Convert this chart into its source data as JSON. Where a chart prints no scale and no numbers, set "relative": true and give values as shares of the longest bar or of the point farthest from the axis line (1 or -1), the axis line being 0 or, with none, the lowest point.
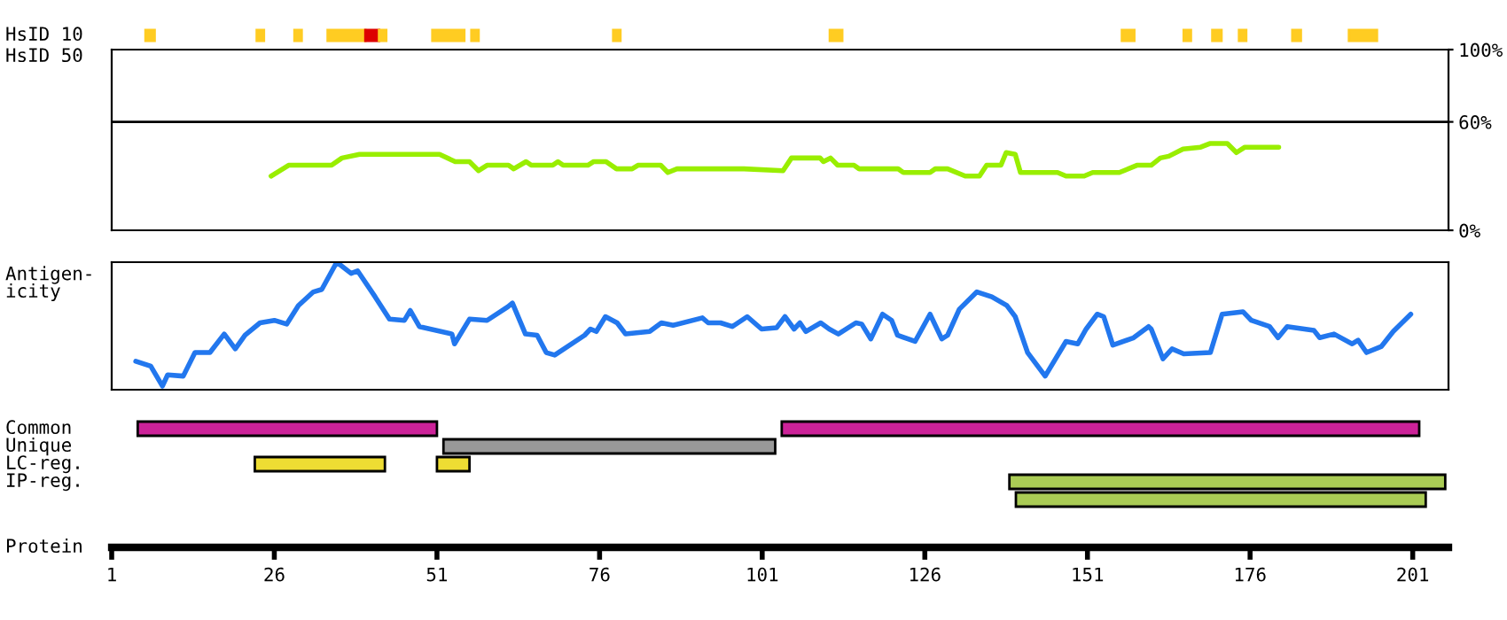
{
  "chart_data": [
    {
      "type": "bar",
      "orientation": "horizontal",
      "categories": [
        "HsID 10",
        "HsID 50"
      ],
      "xlim": [
        1,
        206.5
      ],
      "tick_labels": "y",
      "series": [
        {
          "color": "#ffcc22",
          "base": [
            6.2,
            null
          ],
          "values": [
            1.4,
            null
          ]
        },
        {
          "color": "#ffcc22",
          "base": [
            23.3,
            null
          ],
          "values": [
            1.1,
            null
          ]
        },
        {
          "color": "#ffcc22",
          "base": [
            29.1,
            null
          ],
          "values": [
            1.1,
            null
          ]
        },
        {
          "color": "#ffcc22",
          "base": [
            34.2,
            null
          ],
          "values": [
            5.8,
            null
          ]
        },
        {
          "color": "#dd0000",
          "base": [
            40.0,
            null
          ],
          "values": [
            2.1,
            null
          ]
        },
        {
          "color": "#ffcc22",
          "base": [
            42.1,
            null
          ],
          "values": [
            1.1,
            null
          ]
        },
        {
          "color": "#ffcc22",
          "base": [
            50.3,
            null
          ],
          "values": [
            4.9,
            null
          ]
        },
        {
          "color": "#ffcc22",
          "base": [
            56.3,
            null
          ],
          "values": [
            1.1,
            null
          ]
        },
        {
          "color": "#ffcc22",
          "base": [
            78.1,
            null
          ],
          "values": [
            1.1,
            null
          ]
        },
        {
          "color": "#ffcc22",
          "base": [
            111.4,
            null
          ],
          "values": [
            1.9,
            null
          ]
        },
        {
          "color": "#ffcc22",
          "base": [
            156.3,
            null
          ],
          "values": [
            1.9,
            null
          ]
        },
        {
          "color": "#ffcc22",
          "base": [
            165.8,
            null
          ],
          "values": [
            1.1,
            null
          ]
        },
        {
          "color": "#ffcc22",
          "base": [
            170.2,
            null
          ],
          "values": [
            1.4,
            null
          ]
        },
        {
          "color": "#ffcc22",
          "base": [
            174.3,
            null
          ],
          "values": [
            1.1,
            null
          ]
        },
        {
          "color": "#ffcc22",
          "base": [
            182.5,
            null
          ],
          "values": [
            1.3,
            null
          ]
        },
        {
          "color": "#ffcc22",
          "base": [
            191.2,
            null
          ],
          "values": [
            4.3,
            null
          ]
        }
      ]
    },
    {
      "type": "line",
      "xlim": [
        1,
        206.5
      ],
      "ylim": [
        0,
        100
      ],
      "yticks": [
        {
          "value": 0,
          "label": "0%"
        },
        {
          "value": 60,
          "label": "60%"
        },
        {
          "value": 100,
          "label": "100%"
        }
      ],
      "tick_labels": "y",
      "ref_lines": [
        {
          "axis": "y",
          "value": 60,
          "color": "#000000"
        }
      ],
      "series": [
        {
          "color": "#99ee00",
          "x": [
            25.5,
            28.2,
            34.8,
            36.4,
            39.1,
            51.4,
            53.8,
            56.0,
            57.4,
            58.7,
            62.0,
            62.8,
            64.7,
            65.5,
            68.8,
            69.6,
            70.4,
            74.2,
            75.1,
            77.0,
            78.6,
            81.0,
            81.9,
            85.4,
            86.5,
            87.9,
            98.2,
            104.2,
            105.5,
            109.9,
            110.4,
            111.5,
            112.6,
            115.1,
            115.9,
            121.9,
            122.7,
            126.8,
            127.6,
            129.5,
            132.2,
            134.4,
            135.5,
            137.7,
            138.5,
            139.9,
            140.7,
            146.4,
            147.7,
            150.5,
            151.8,
            155.9,
            158.6,
            160.8,
            162.2,
            163.5,
            165.7,
            168.4,
            169.8,
            172.5,
            173.9,
            175.2,
            180.4
          ],
          "values": [
            30,
            36,
            36,
            40,
            42,
            42,
            38,
            38,
            33,
            36,
            36,
            34,
            38,
            36,
            36,
            38,
            36,
            36,
            38,
            38,
            34,
            34,
            36,
            36,
            32,
            34,
            34,
            33,
            40,
            40,
            38,
            40,
            36,
            36,
            34,
            34,
            32,
            32,
            34,
            34,
            30,
            30,
            36,
            36,
            43,
            42,
            32,
            32,
            30,
            30,
            32,
            32,
            36,
            36,
            40,
            41,
            45,
            46,
            48,
            48,
            43,
            46,
            46
          ]
        }
      ]
    },
    {
      "type": "line",
      "xlim": [
        1,
        206.5
      ],
      "relative": true,
      "tick_labels": false,
      "ylabel": "Antigen-\nicity",
      "series": [
        {
          "color": "#2277ee",
          "x": [
            4.7,
            7.0,
            8.8,
            9.6,
            12.0,
            13.8,
            16.1,
            18.3,
            20.0,
            21.5,
            23.8,
            26.0,
            27.9,
            29.7,
            32.0,
            33.3,
            35.6,
            37.8,
            38.8,
            41.5,
            43.7,
            46.0,
            46.9,
            48.3,
            53.3,
            53.7,
            56.0,
            58.7,
            61.9,
            62.6,
            64.6,
            66.4,
            67.8,
            69.1,
            73.7,
            74.6,
            75.5,
            76.9,
            78.7,
            80.0,
            83.7,
            85.5,
            87.3,
            91.8,
            92.7,
            94.6,
            96.4,
            98.7,
            100.9,
            103.2,
            104.5,
            105.9,
            106.8,
            107.7,
            110.0,
            111.3,
            112.7,
            115.4,
            116.3,
            117.7,
            119.5,
            120.9,
            121.8,
            124.5,
            126.8,
            128.6,
            129.5,
            131.3,
            134.0,
            136.3,
            138.6,
            139.9,
            141.8,
            144.5,
            147.7,
            149.5,
            150.8,
            152.5,
            153.5,
            154.9,
            158.1,
            160.4,
            160.8,
            162.6,
            164.0,
            165.8,
            169.9,
            171.7,
            174.9,
            176.2,
            179.0,
            180.3,
            181.7,
            185.8,
            186.7,
            188.9,
            191.7,
            192.6,
            193.9,
            196.2,
            198.0,
            200.7
          ],
          "values": [
            0.2,
            0.16,
            0,
            0.09,
            0.08,
            0.27,
            0.27,
            0.42,
            0.3,
            0.41,
            0.51,
            0.53,
            0.5,
            0.65,
            0.76,
            0.78,
            1,
            0.91,
            0.93,
            0.72,
            0.54,
            0.53,
            0.61,
            0.48,
            0.42,
            0.34,
            0.54,
            0.53,
            0.64,
            0.67,
            0.42,
            0.41,
            0.27,
            0.25,
            0.41,
            0.46,
            0.44,
            0.56,
            0.51,
            0.42,
            0.44,
            0.51,
            0.49,
            0.55,
            0.51,
            0.51,
            0.48,
            0.56,
            0.46,
            0.47,
            0.56,
            0.46,
            0.51,
            0.44,
            0.51,
            0.46,
            0.42,
            0.51,
            0.5,
            0.38,
            0.58,
            0.53,
            0.41,
            0.36,
            0.58,
            0.38,
            0.41,
            0.62,
            0.76,
            0.72,
            0.65,
            0.56,
            0.27,
            0.08,
            0.36,
            0.34,
            0.46,
            0.58,
            0.56,
            0.33,
            0.39,
            0.48,
            0.46,
            0.22,
            0.3,
            0.26,
            0.27,
            0.58,
            0.6,
            0.53,
            0.48,
            0.39,
            0.48,
            0.45,
            0.39,
            0.42,
            0.34,
            0.37,
            0.27,
            0.32,
            0.44,
            0.58
          ]
        }
      ]
    },
    {
      "type": "bar",
      "orientation": "horizontal",
      "categories": [
        "Common",
        "Unique",
        "LC-reg.",
        "IP-reg.",
        null
      ],
      "xlim": [
        1,
        206.5
      ],
      "xlabel": "Protein",
      "xticks": [
        1,
        26,
        51,
        76,
        101,
        126,
        151,
        176,
        201
      ],
      "series": [
        {
          "colors": [
            "#cc2299",
            "#999999",
            "#eedd33",
            "#aacc55",
            "#aacc55"
          ],
          "base": [
            5,
            52,
            23,
            139,
            140
          ],
          "values": [
            46,
            51,
            20,
            67,
            63
          ]
        },
        {
          "colors": [
            "#cc2299",
            null,
            "#eedd33",
            null,
            null
          ],
          "base": [
            104,
            null,
            51,
            null,
            null
          ],
          "values": [
            98,
            null,
            5,
            null,
            null
          ]
        }
      ]
    }
  ]
}
